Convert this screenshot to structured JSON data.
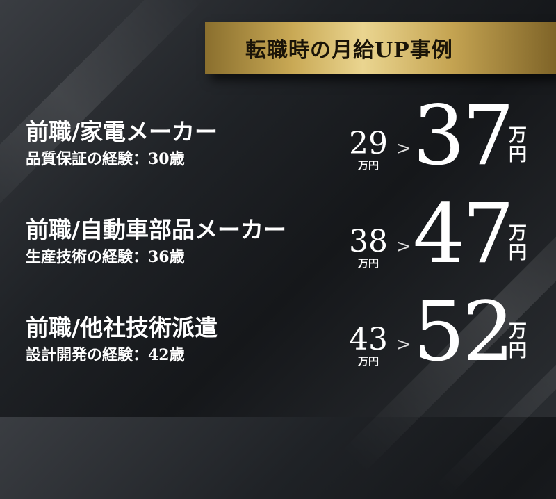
{
  "header": {
    "title": "転職時の月給UP事例"
  },
  "cases": [
    {
      "title": "前職/家電メーカー",
      "detail": "品質保証の経験：30歳",
      "before": "29",
      "before_unit": "万円",
      "after": "37",
      "after_unit": "万円"
    },
    {
      "title": "前職/自動車部品メーカー",
      "detail": "生産技術の経験：36歳",
      "before": "38",
      "before_unit": "万円",
      "after": "47",
      "after_unit": "万円"
    },
    {
      "title": "前職/他社技術派遣",
      "detail": "設計開発の経験：42歳",
      "before": "43",
      "before_unit": "万円",
      "after": "52",
      "after_unit": "万円"
    }
  ],
  "colors": {
    "gold": "#d9bf74",
    "background": "#1f2226",
    "text": "#ffffff"
  }
}
